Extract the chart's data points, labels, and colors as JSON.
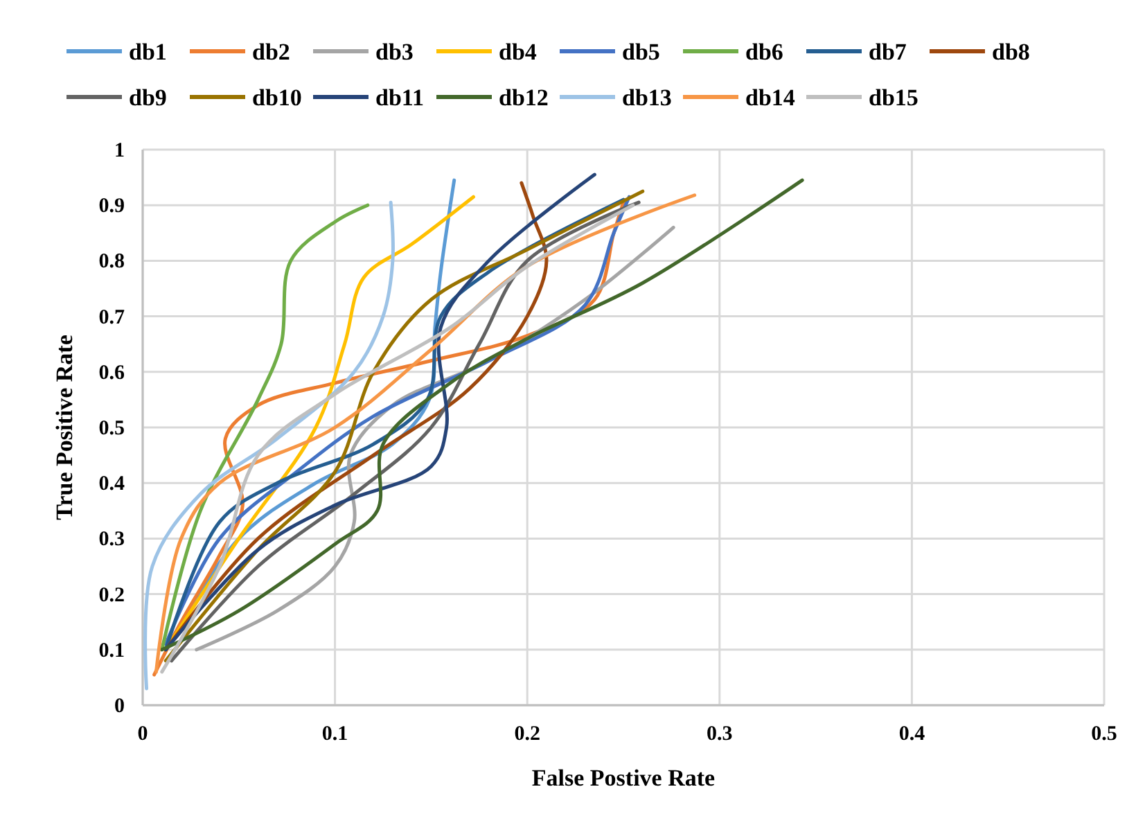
{
  "chart_data": {
    "type": "line",
    "xlabel": "False Postive Rate",
    "ylabel": "True Positive Rate",
    "xlim": [
      0,
      0.5
    ],
    "ylim": [
      0,
      1
    ],
    "xticks": [
      0,
      0.1,
      0.2,
      0.3,
      0.4,
      0.5
    ],
    "yticks": [
      0,
      0.1,
      0.2,
      0.3,
      0.4,
      0.5,
      0.6,
      0.7,
      0.8,
      0.9,
      1
    ],
    "grid": true,
    "legend": "top",
    "marker": "none",
    "line_style": "solid",
    "series": [
      {
        "name": "db1",
        "color": "#5b9bd5",
        "x": [
          0.012,
          0.05,
          0.09,
          0.13,
          0.149,
          0.152,
          0.155,
          0.162
        ],
        "values": [
          0.1,
          0.3,
          0.4,
          0.47,
          0.55,
          0.68,
          0.78,
          0.945
        ]
      },
      {
        "name": "db2",
        "color": "#ed7d31",
        "x": [
          0.006,
          0.02,
          0.04,
          0.052,
          0.043,
          0.06,
          0.1,
          0.15,
          0.2,
          0.235,
          0.245,
          0.25
        ],
        "values": [
          0.055,
          0.15,
          0.27,
          0.36,
          0.48,
          0.54,
          0.58,
          0.62,
          0.665,
          0.73,
          0.85,
          0.905
        ]
      },
      {
        "name": "db3",
        "color": "#a5a5a5",
        "x": [
          0.028,
          0.07,
          0.1,
          0.11,
          0.108,
          0.13,
          0.18,
          0.23,
          0.276
        ],
        "values": [
          0.1,
          0.17,
          0.25,
          0.33,
          0.45,
          0.54,
          0.62,
          0.73,
          0.86
        ]
      },
      {
        "name": "db4",
        "color": "#ffc000",
        "x": [
          0.012,
          0.05,
          0.09,
          0.105,
          0.115,
          0.14,
          0.172
        ],
        "values": [
          0.1,
          0.3,
          0.5,
          0.65,
          0.77,
          0.83,
          0.915
        ]
      },
      {
        "name": "db5",
        "color": "#4472c4",
        "x": [
          0.012,
          0.04,
          0.08,
          0.12,
          0.18,
          0.23,
          0.245,
          0.253
        ],
        "values": [
          0.11,
          0.3,
          0.42,
          0.52,
          0.62,
          0.72,
          0.85,
          0.915
        ]
      },
      {
        "name": "db6",
        "color": "#70ad47",
        "x": [
          0.01,
          0.03,
          0.06,
          0.072,
          0.077,
          0.1,
          0.117
        ],
        "values": [
          0.1,
          0.35,
          0.55,
          0.65,
          0.8,
          0.87,
          0.9
        ]
      },
      {
        "name": "db7",
        "color": "#255e91",
        "x": [
          0.012,
          0.04,
          0.07,
          0.12,
          0.148,
          0.155,
          0.18,
          0.25
        ],
        "values": [
          0.1,
          0.33,
          0.4,
          0.47,
          0.55,
          0.7,
          0.78,
          0.91
        ]
      },
      {
        "name": "db8",
        "color": "#9e480e",
        "x": [
          0.012,
          0.06,
          0.12,
          0.17,
          0.2,
          0.21,
          0.203,
          0.197
        ],
        "values": [
          0.1,
          0.3,
          0.45,
          0.57,
          0.7,
          0.8,
          0.88,
          0.94
        ]
      },
      {
        "name": "db9",
        "color": "#636363",
        "x": [
          0.015,
          0.06,
          0.11,
          0.15,
          0.175,
          0.2,
          0.258
        ],
        "values": [
          0.08,
          0.25,
          0.38,
          0.5,
          0.65,
          0.8,
          0.905
        ]
      },
      {
        "name": "db10",
        "color": "#997300",
        "x": [
          0.012,
          0.06,
          0.1,
          0.12,
          0.15,
          0.2,
          0.26
        ],
        "values": [
          0.08,
          0.28,
          0.42,
          0.6,
          0.73,
          0.82,
          0.925
        ]
      },
      {
        "name": "db11",
        "color": "#264478",
        "x": [
          0.012,
          0.06,
          0.1,
          0.15,
          0.158,
          0.155,
          0.18,
          0.235
        ],
        "values": [
          0.1,
          0.28,
          0.36,
          0.43,
          0.5,
          0.68,
          0.8,
          0.955
        ]
      },
      {
        "name": "db12",
        "color": "#43682b",
        "x": [
          0.01,
          0.05,
          0.1,
          0.122,
          0.125,
          0.16,
          0.2,
          0.26,
          0.343
        ],
        "values": [
          0.1,
          0.17,
          0.29,
          0.35,
          0.47,
          0.58,
          0.66,
          0.76,
          0.945
        ]
      },
      {
        "name": "db13",
        "color": "#9dc3e6",
        "x": [
          0.002,
          0.005,
          0.03,
          0.07,
          0.11,
          0.125,
          0.13,
          0.129
        ],
        "values": [
          0.03,
          0.25,
          0.38,
          0.48,
          0.6,
          0.7,
          0.8,
          0.905
        ]
      },
      {
        "name": "db14",
        "color": "#f79646",
        "x": [
          0.007,
          0.02,
          0.04,
          0.1,
          0.15,
          0.2,
          0.287
        ],
        "values": [
          0.06,
          0.3,
          0.4,
          0.5,
          0.64,
          0.79,
          0.918
        ]
      },
      {
        "name": "db15",
        "color": "#bfbfbf",
        "x": [
          0.01,
          0.04,
          0.06,
          0.1,
          0.16,
          0.2,
          0.255
        ],
        "values": [
          0.06,
          0.25,
          0.45,
          0.56,
          0.68,
          0.79,
          0.9
        ]
      }
    ]
  }
}
